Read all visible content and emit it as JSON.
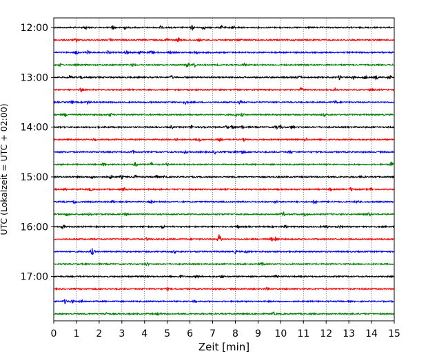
{
  "chart_data": {
    "type": "line",
    "title": "",
    "xlabel": "Zeit  [min]",
    "ylabel": "UTC (Lokalzeit = UTC + 02:00)",
    "xlim": [
      0,
      15
    ],
    "x_ticks": [
      "0",
      "1",
      "2",
      "3",
      "4",
      "5",
      "6",
      "7",
      "8",
      "9",
      "10",
      "11",
      "12",
      "13",
      "14",
      "15"
    ],
    "y_tick_labels": [
      "12:00",
      "13:00",
      "14:00",
      "15:00",
      "16:00",
      "17:00"
    ],
    "grid": "vertical dotted",
    "legend": "none",
    "trace_colors": [
      "#000000",
      "#ff0000",
      "#0000ff",
      "#008000"
    ],
    "series": [
      {
        "start": "12:00",
        "events": [
          [
            2.6,
            3
          ],
          [
            3.1,
            2.5
          ],
          [
            4.7,
            2
          ],
          [
            6.1,
            3
          ],
          [
            6.6,
            2.5
          ],
          [
            7.4,
            2
          ],
          [
            7.9,
            2
          ],
          [
            1.4,
            2
          ]
        ]
      },
      {
        "start": "12:15",
        "events": [
          [
            1.0,
            2
          ],
          [
            2.5,
            2
          ],
          [
            5.0,
            2.5
          ],
          [
            5.5,
            3
          ],
          [
            6.4,
            2
          ],
          [
            8.2,
            2
          ]
        ]
      },
      {
        "start": "12:30",
        "events": [
          [
            1.0,
            2
          ],
          [
            1.5,
            2
          ],
          [
            2.4,
            2
          ],
          [
            3.2,
            2
          ],
          [
            3.8,
            2.5
          ],
          [
            4.3,
            2
          ],
          [
            5.1,
            2
          ],
          [
            6.3,
            2
          ]
        ]
      },
      {
        "start": "12:45",
        "events": [
          [
            0.3,
            2
          ],
          [
            5.9,
            3
          ],
          [
            6.2,
            2.5
          ],
          [
            3.5,
            2
          ],
          [
            8.4,
            2
          ]
        ]
      },
      {
        "start": "13:00",
        "events": [
          [
            0.7,
            2.5
          ],
          [
            1.2,
            2
          ],
          [
            5.2,
            2
          ],
          [
            10.8,
            2.5
          ],
          [
            12.6,
            3
          ],
          [
            13.2,
            2
          ],
          [
            13.7,
            2.5
          ],
          [
            14.2,
            2.5
          ],
          [
            14.8,
            3
          ]
        ]
      },
      {
        "start": "13:15",
        "events": [
          [
            1.2,
            2
          ],
          [
            10.9,
            2.5
          ],
          [
            12.4,
            2
          ],
          [
            14.0,
            2
          ]
        ]
      },
      {
        "start": "13:30",
        "events": [
          [
            0.8,
            2
          ],
          [
            1.5,
            2
          ],
          [
            5.8,
            2
          ],
          [
            8.2,
            2
          ],
          [
            12.4,
            2
          ]
        ]
      },
      {
        "start": "13:45",
        "events": [
          [
            0.5,
            2.5
          ],
          [
            2.5,
            2
          ],
          [
            8.0,
            2
          ],
          [
            8.3,
            2
          ],
          [
            11.9,
            2
          ]
        ]
      },
      {
        "start": "14:00",
        "events": [
          [
            5.2,
            2
          ],
          [
            6.1,
            2.5
          ],
          [
            6.6,
            2
          ],
          [
            7.6,
            2
          ],
          [
            7.9,
            2.5
          ],
          [
            8.3,
            2
          ],
          [
            9.8,
            2.5
          ],
          [
            10.0,
            2
          ],
          [
            10.5,
            2.5
          ]
        ]
      },
      {
        "start": "14:15",
        "events": [
          [
            1.8,
            2
          ],
          [
            5.4,
            2
          ],
          [
            6.4,
            2
          ],
          [
            7.3,
            2
          ],
          [
            8.4,
            2
          ],
          [
            11.1,
            2
          ]
        ]
      },
      {
        "start": "14:30",
        "events": [
          [
            3.5,
            2
          ],
          [
            5.8,
            2
          ],
          [
            7.1,
            2
          ],
          [
            8.0,
            2
          ],
          [
            8.3,
            2.5
          ],
          [
            10.4,
            2
          ]
        ]
      },
      {
        "start": "14:45",
        "events": [
          [
            3.6,
            3
          ],
          [
            4.3,
            2.5
          ],
          [
            5.0,
            2
          ],
          [
            14.9,
            4
          ],
          [
            2.2,
            2
          ]
        ]
      },
      {
        "start": "15:00",
        "events": [
          [
            1.7,
            2
          ],
          [
            2.5,
            2.5
          ],
          [
            3.0,
            2
          ],
          [
            3.6,
            2
          ],
          [
            4.5,
            2.5
          ],
          [
            4.9,
            2.5
          ],
          [
            13.6,
            2
          ]
        ]
      },
      {
        "start": "15:15",
        "events": [
          [
            0.5,
            2
          ],
          [
            1.6,
            2
          ],
          [
            3.1,
            2
          ],
          [
            12.2,
            2
          ],
          [
            13.1,
            2.5
          ],
          [
            14.0,
            2
          ]
        ]
      },
      {
        "start": "15:30",
        "events": [
          [
            0.9,
            2
          ],
          [
            2.6,
            2
          ],
          [
            4.3,
            2
          ],
          [
            9.8,
            2
          ],
          [
            11.5,
            2.5
          ],
          [
            13.4,
            2
          ]
        ]
      },
      {
        "start": "15:45",
        "events": [
          [
            0.6,
            2
          ],
          [
            1.6,
            2
          ],
          [
            3.2,
            2
          ],
          [
            10.1,
            3
          ],
          [
            11.1,
            2
          ],
          [
            13.9,
            2
          ]
        ]
      },
      {
        "start": "16:00",
        "events": [
          [
            0.4,
            2
          ],
          [
            4.8,
            2
          ],
          [
            8.1,
            2
          ],
          [
            10.2,
            2.5
          ],
          [
            12.0,
            2
          ],
          [
            12.6,
            2
          ]
        ]
      },
      {
        "start": "16:15",
        "events": [
          [
            7.3,
            7
          ],
          [
            9.8,
            4
          ],
          [
            9.6,
            2.5
          ],
          [
            4.1,
            2
          ]
        ]
      },
      {
        "start": "16:30",
        "events": [
          [
            1.7,
            4.5
          ],
          [
            5.3,
            2
          ],
          [
            8.0,
            2
          ],
          [
            8.5,
            2
          ]
        ]
      },
      {
        "start": "16:45",
        "events": [
          [
            4.1,
            2
          ],
          [
            9.2,
            2
          ]
        ]
      },
      {
        "start": "17:00",
        "events": [
          [
            5.6,
            2
          ],
          [
            6.3,
            2
          ],
          [
            7.4,
            2
          ],
          [
            9.8,
            2
          ]
        ]
      },
      {
        "start": "17:15",
        "events": [
          [
            5.0,
            2
          ],
          [
            9.4,
            2
          ]
        ]
      },
      {
        "start": "17:30",
        "events": [
          [
            0.5,
            3
          ],
          [
            0.8,
            2.5
          ],
          [
            1.2,
            2
          ],
          [
            6.2,
            2
          ]
        ]
      },
      {
        "start": "17:45",
        "events": [
          [
            2.3,
            2
          ],
          [
            4.6,
            2
          ],
          [
            9.7,
            2
          ]
        ]
      }
    ]
  }
}
